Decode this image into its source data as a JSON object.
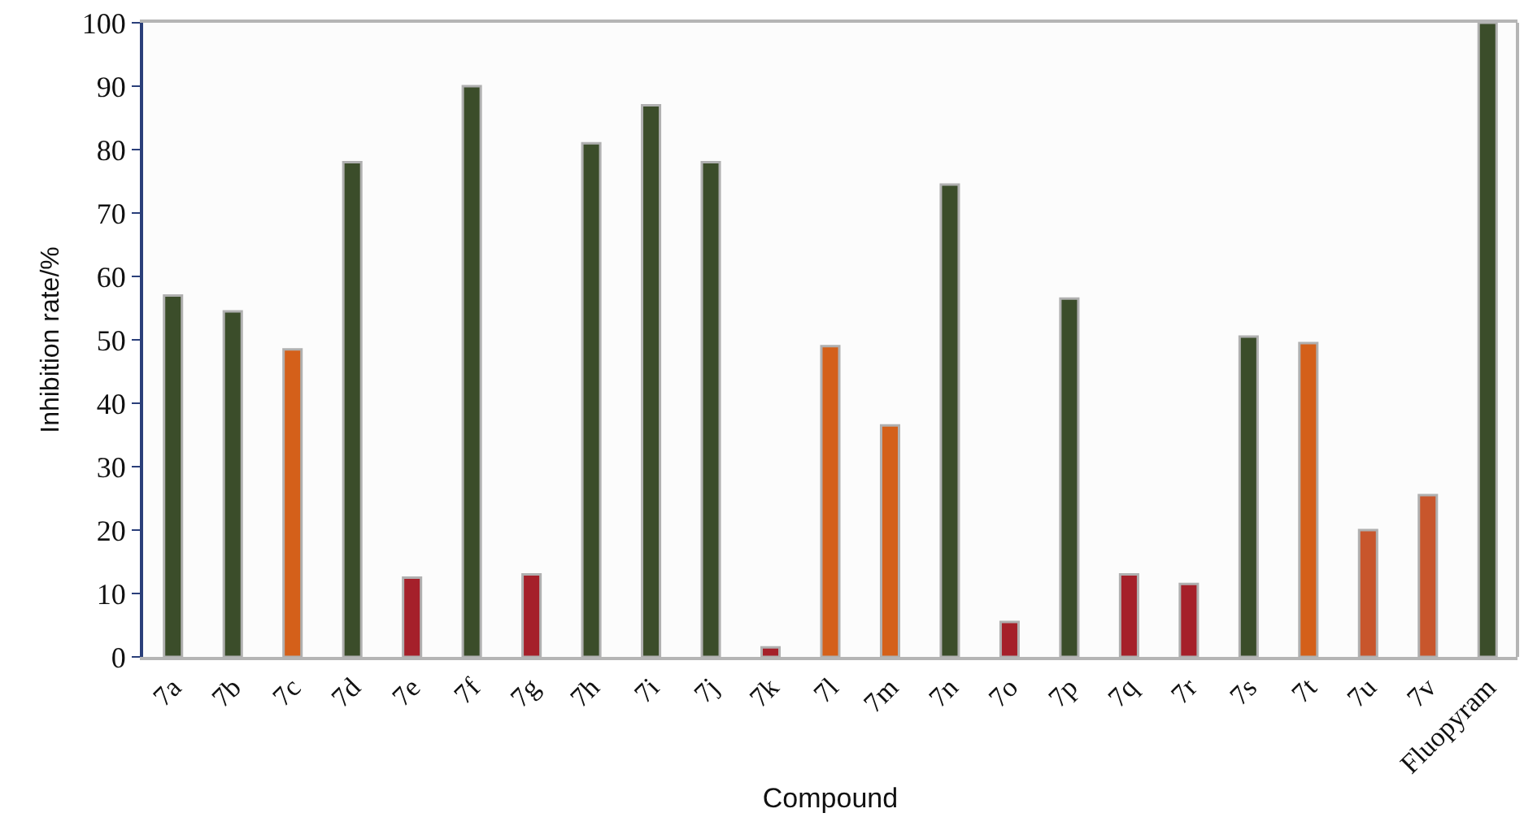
{
  "chart_data": {
    "type": "bar",
    "xlabel": "Compound",
    "ylabel": "Inhibition rate/%",
    "categories": [
      "7a",
      "7b",
      "7c",
      "7d",
      "7e",
      "7f",
      "7g",
      "7h",
      "7i",
      "7j",
      "7k",
      "7l",
      "7m",
      "7n",
      "7o",
      "7p",
      "7q",
      "7r",
      "7s",
      "7t",
      "7u",
      "7v",
      "Fluopyram"
    ],
    "values": [
      57,
      54.5,
      48.5,
      78,
      12.5,
      90,
      13,
      81,
      87,
      78,
      1.5,
      49,
      36.5,
      74.5,
      5.5,
      56.5,
      13,
      11.5,
      50.5,
      49.5,
      20,
      25.5,
      100
    ],
    "colors": [
      "#3b4d2a",
      "#3b4d2a",
      "#d4601a",
      "#3b4d2a",
      "#a5202a",
      "#3b4d2a",
      "#a5202a",
      "#3b4d2a",
      "#3b4d2a",
      "#3b4d2a",
      "#a5202a",
      "#d4601a",
      "#d4601a",
      "#3b4d2a",
      "#a5202a",
      "#3b4d2a",
      "#a5202a",
      "#a5202a",
      "#3b4d2a",
      "#d4601a",
      "#c8562c",
      "#c8562c",
      "#3b4d2a"
    ],
    "ylim": [
      0,
      100
    ],
    "yticks": [
      0,
      10,
      20,
      30,
      40,
      50,
      60,
      70,
      80,
      90,
      100
    ]
  }
}
